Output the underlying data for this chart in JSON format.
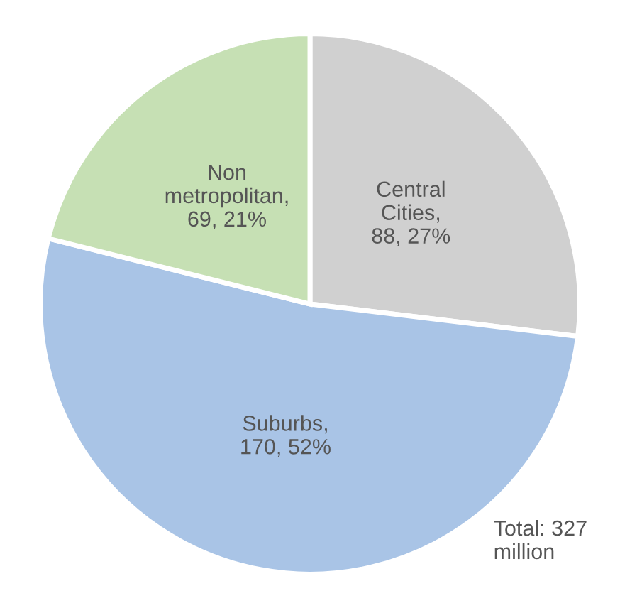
{
  "chart_data": {
    "type": "pie",
    "categories": [
      "Central Cities",
      "Suburbs",
      "Non metropolitan"
    ],
    "values": [
      88,
      170,
      69
    ],
    "value_labels": [
      ",\n88, 27%",
      ",\n170, 52%",
      ",\n69, 21%"
    ],
    "colors": [
      "#d0d0d0",
      "#a9c4e6",
      "#c6e0b4"
    ],
    "annotations": [
      "Total: 327\nmillion"
    ]
  }
}
